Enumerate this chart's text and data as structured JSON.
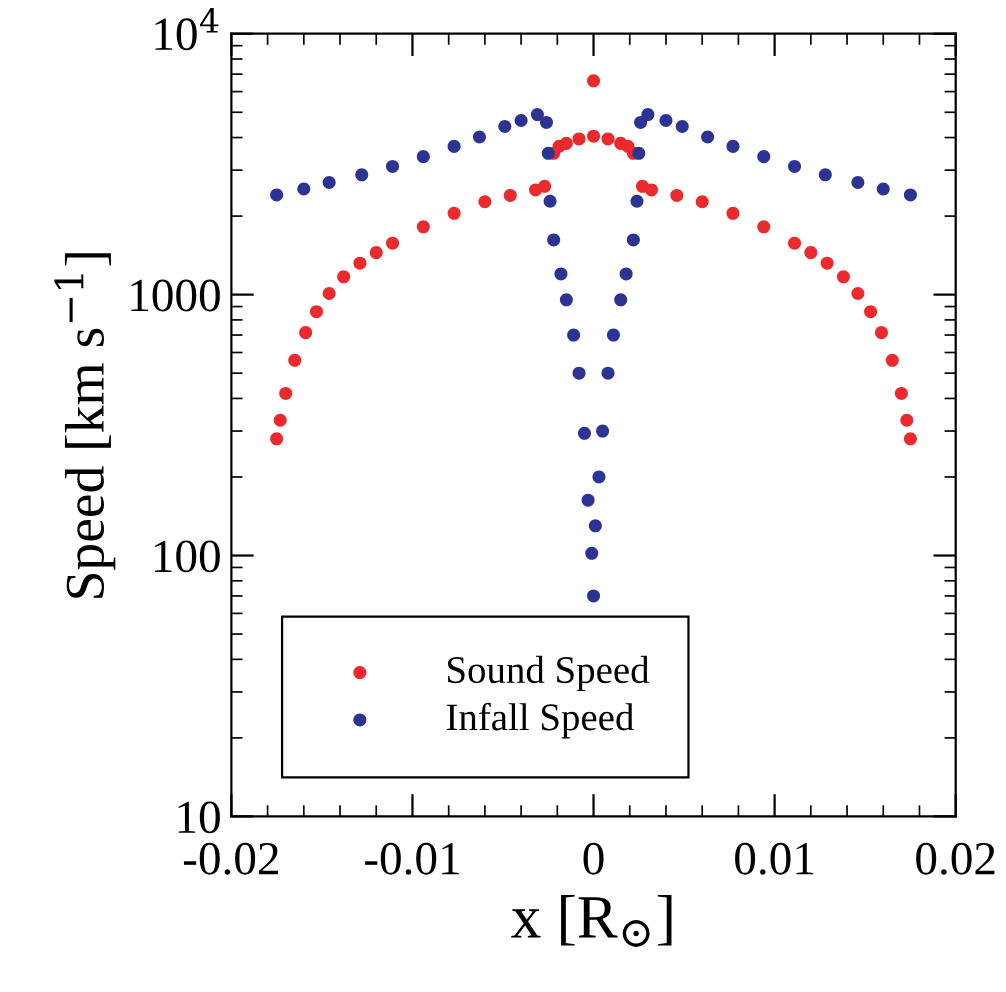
{
  "chart_data": {
    "type": "scatter",
    "xlabel": "x [R$_{⊙}$]",
    "ylabel": "Speed [km s$^{−1}$]",
    "xlim": [
      -0.02,
      0.02
    ],
    "xticks": [
      -0.02,
      -0.01,
      0,
      0.01,
      0.02
    ],
    "ylim": [
      10,
      10000
    ],
    "yticks": [
      10,
      100,
      1000,
      {
        "value": 10000,
        "label": "10$^{4}$"
      }
    ],
    "log": "y",
    "grid": false,
    "legend": "bottom left",
    "marker": "circle",
    "series": [
      {
        "name": "Sound Speed",
        "color": "#ec2a2e",
        "x": [
          -0.0175,
          -0.0173,
          -0.017,
          -0.0165,
          -0.0159,
          -0.0153,
          -0.0146,
          -0.0138,
          -0.0129,
          -0.012,
          -0.0111,
          -0.0094,
          -0.0077,
          -0.006,
          -0.0046,
          -0.0032,
          -0.0027,
          -0.0022,
          -0.0019,
          -0.0015,
          -0.0008,
          0,
          0,
          0.0008,
          0.0015,
          0.0019,
          0.0022,
          0.0027,
          0.0032,
          0.0046,
          0.006,
          0.0077,
          0.0094,
          0.0111,
          0.012,
          0.0129,
          0.0138,
          0.0146,
          0.0153,
          0.0159,
          0.0165,
          0.017,
          0.0173,
          0.0175
        ],
        "values": [
          280,
          330,
          418,
          560,
          715,
          860,
          1010,
          1170,
          1320,
          1450,
          1575,
          1820,
          2050,
          2270,
          2400,
          2520,
          2600,
          3480,
          3700,
          3800,
          3950,
          4050,
          6600,
          3950,
          3800,
          3700,
          3480,
          2600,
          2520,
          2400,
          2270,
          2050,
          1820,
          1575,
          1450,
          1320,
          1170,
          1010,
          860,
          715,
          560,
          418,
          330,
          280
        ]
      },
      {
        "name": "Infall Speed",
        "color": "#2b3495",
        "x": [
          -0.0175,
          -0.016,
          -0.0146,
          -0.0128,
          -0.0111,
          -0.0094,
          -0.0077,
          -0.0063,
          -0.0049,
          -0.004,
          -0.0031,
          -0.0026,
          -0.0025,
          -0.0024,
          -0.0022,
          -0.0018,
          -0.0015,
          -0.0011,
          -0.0008,
          -0.0005,
          -0.0003,
          -0.0001,
          0,
          0.0001,
          0.0003,
          0.0005,
          0.0008,
          0.0011,
          0.0015,
          0.0018,
          0.0022,
          0.0024,
          0.0025,
          0.0026,
          0.003,
          0.004,
          0.0049,
          0.0063,
          0.0077,
          0.0094,
          0.0111,
          0.0128,
          0.0146,
          0.016,
          0.0175
        ],
        "values": [
          2410,
          2540,
          2690,
          2880,
          3100,
          3380,
          3700,
          4020,
          4410,
          4650,
          4900,
          4570,
          3480,
          2280,
          1620,
          1200,
          955,
          700,
          500,
          294,
          163,
          102,
          70,
          130,
          200,
          300,
          500,
          700,
          955,
          1200,
          1620,
          2280,
          3480,
          4570,
          4900,
          4650,
          4410,
          4020,
          3700,
          3380,
          3100,
          2880,
          2690,
          2540,
          2410
        ]
      }
    ]
  }
}
